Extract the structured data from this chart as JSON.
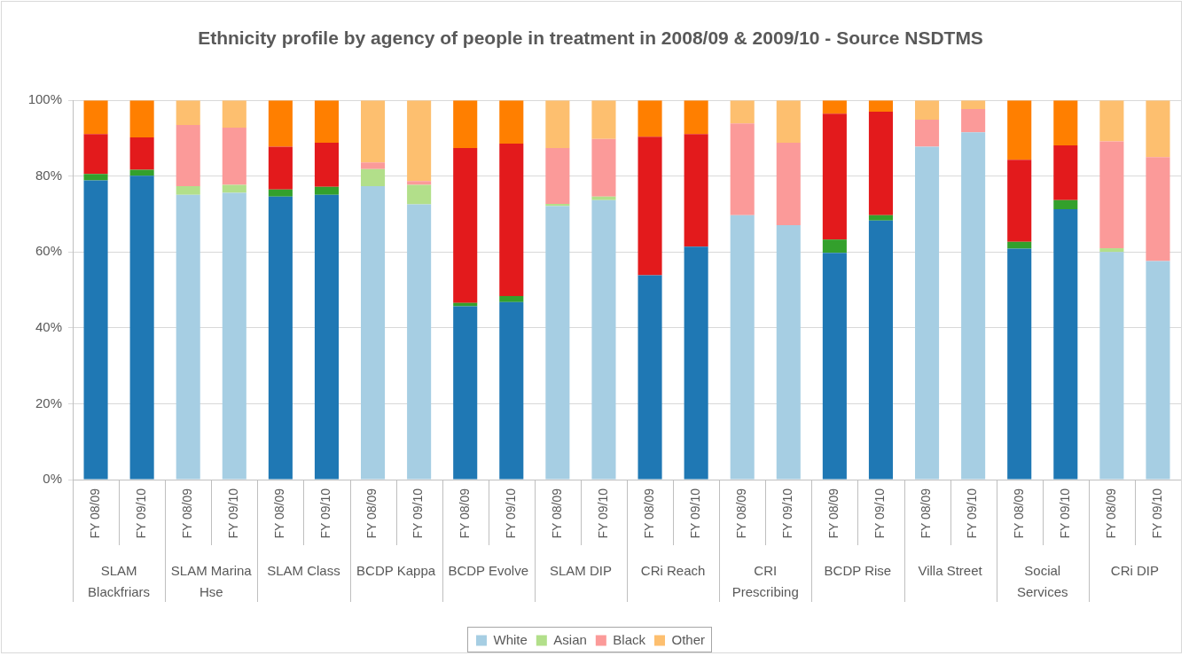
{
  "chart_data": {
    "type": "bar",
    "title": "Ethnicity profile by agency of people in treatment in 2008/09 & 2009/10 - Source NSDTMS",
    "categories": [
      "FY 08/09",
      "FY 09/10",
      "FY 08/09",
      "FY 09/10",
      "FY 08/09",
      "FY 09/10",
      "FY 08/09",
      "FY 09/10",
      "FY 08/09",
      "FY 09/10",
      "FY 08/09",
      "FY 09/10",
      "FY 08/09",
      "FY 09/10",
      "FY 08/09",
      "FY 09/10",
      "FY 08/09",
      "FY 09/10",
      "FY 08/09",
      "FY 09/10",
      "FY 08/09",
      "FY 09/10",
      "FY 08/09",
      "FY 09/10"
    ],
    "series": [
      {
        "name": "White",
        "color": "#a6cee3",
        "colors": [
          "#1f78b4",
          "#1f78b4",
          "#a6cee3",
          "#a6cee3",
          "#1f78b4",
          "#1f78b4",
          "#a6cee3",
          "#a6cee3",
          "#1f78b4",
          "#1f78b4",
          "#a6cee3",
          "#a6cee3",
          "#1f78b4",
          "#1f78b4",
          "#a6cee3",
          "#a6cee3",
          "#1f78b4",
          "#1f78b4",
          "#a6cee3",
          "#a6cee3",
          "#1f78b4",
          "#1f78b4",
          "#a6cee3",
          "#a6cee3"
        ],
        "values": [
          78.9,
          80.1,
          75.1,
          75.6,
          74.6,
          75.1,
          77.4,
          72.6,
          45.7,
          46.8,
          72.1,
          73.7,
          53.9,
          61.4,
          69.7,
          67.1,
          59.8,
          68.3,
          87.8,
          91.6,
          60.9,
          71.3,
          60.0,
          57.6
        ]
      },
      {
        "name": "Asian",
        "color": "#b2df8a",
        "colors": [
          "#33a02c",
          "#33a02c",
          "#b2df8a",
          "#b2df8a",
          "#33a02c",
          "#33a02c",
          "#b2df8a",
          "#b2df8a",
          "#33a02c",
          "#33a02c",
          "#b2df8a",
          "#b2df8a",
          "#33a02c",
          "#33a02c",
          "#b2df8a",
          "#b2df8a",
          "#33a02c",
          "#33a02c",
          "#b2df8a",
          "#b2df8a",
          "#33a02c",
          "#33a02c",
          "#b2df8a",
          "#b2df8a"
        ],
        "values": [
          1.7,
          1.6,
          2.3,
          2.1,
          1.9,
          2.1,
          4.5,
          5.1,
          0.9,
          1.6,
          0.6,
          0.9,
          0,
          0,
          0,
          0,
          3.5,
          1.4,
          0,
          0,
          1.8,
          2.4,
          1.0,
          0
        ]
      },
      {
        "name": "Black",
        "color": "#fb9a99",
        "colors": [
          "#e31a1c",
          "#e31a1c",
          "#fb9a99",
          "#fb9a99",
          "#e31a1c",
          "#e31a1c",
          "#fb9a99",
          "#fb9a99",
          "#e31a1c",
          "#e31a1c",
          "#fb9a99",
          "#fb9a99",
          "#e31a1c",
          "#e31a1c",
          "#fb9a99",
          "#fb9a99",
          "#e31a1c",
          "#e31a1c",
          "#fb9a99",
          "#fb9a99",
          "#e31a1c",
          "#e31a1c",
          "#fb9a99",
          "#fb9a99"
        ],
        "values": [
          10.5,
          8.5,
          16.1,
          15.1,
          11.3,
          11.6,
          1.7,
          1.0,
          40.8,
          40.2,
          14.7,
          15.2,
          36.5,
          29.7,
          24.2,
          21.7,
          33.2,
          27.3,
          7.1,
          6.1,
          21.6,
          14.4,
          28.2,
          27.4
        ]
      },
      {
        "name": "Other",
        "color": "#fdbf6f",
        "colors": [
          "#ff7f00",
          "#ff7f00",
          "#fdbf6f",
          "#fdbf6f",
          "#ff7f00",
          "#ff7f00",
          "#fdbf6f",
          "#fdbf6f",
          "#ff7f00",
          "#ff7f00",
          "#fdbf6f",
          "#fdbf6f",
          "#ff7f00",
          "#ff7f00",
          "#fdbf6f",
          "#fdbf6f",
          "#ff7f00",
          "#ff7f00",
          "#fdbf6f",
          "#fdbf6f",
          "#ff7f00",
          "#ff7f00",
          "#fdbf6f",
          "#fdbf6f"
        ],
        "values": [
          8.9,
          9.8,
          6.5,
          7.2,
          12.2,
          11.2,
          16.4,
          21.3,
          12.6,
          11.4,
          12.6,
          10.2,
          9.6,
          8.9,
          6.1,
          11.2,
          3.5,
          3.0,
          5.1,
          2.3,
          15.7,
          11.9,
          10.8,
          15.0
        ]
      }
    ],
    "stacked": true,
    "ylim": [
      0,
      100
    ],
    "yticks": [
      {
        "value": 0,
        "label": "0%"
      },
      {
        "value": 20,
        "label": "20%"
      },
      {
        "value": 40,
        "label": "40%"
      },
      {
        "value": 60,
        "label": "60%"
      },
      {
        "value": 80,
        "label": "80%"
      },
      {
        "value": 100,
        "label": "100%"
      }
    ],
    "grid": "y",
    "legend": "bottom",
    "annotations": [
      "SLAM Blackfriars",
      "SLAM Marina Hse",
      "SLAM Class",
      "BCDP Kappa",
      "BCDP Evolve",
      "SLAM DIP",
      "CRi Reach",
      "CRI Prescribing",
      "BCDP Rise",
      "Villa Street",
      "Social Services",
      "CRi DIP"
    ]
  }
}
